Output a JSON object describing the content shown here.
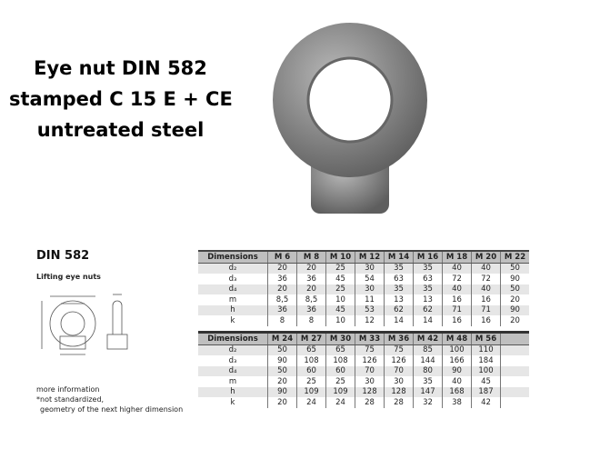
{
  "title": [
    "Eye nut DIN 582",
    "stamped C 15 E + CE",
    "untreated steel"
  ],
  "heading": "DIN 582",
  "subheading": "Lifting eye nuts",
  "notes": [
    "more information",
    "*not standardized,",
    "geometry of the next higher dimension"
  ],
  "table1": {
    "header": [
      "Dimensions",
      "M 6",
      "M 8",
      "M 10",
      "M 12",
      "M 14",
      "M 16",
      "M 18",
      "M 20",
      "M 22"
    ],
    "rows": [
      [
        "d₂",
        "20",
        "20",
        "25",
        "30",
        "35",
        "35",
        "40",
        "40",
        "50"
      ],
      [
        "d₃",
        "36",
        "36",
        "45",
        "54",
        "63",
        "63",
        "72",
        "72",
        "90"
      ],
      [
        "d₄",
        "20",
        "20",
        "25",
        "30",
        "35",
        "35",
        "40",
        "40",
        "50"
      ],
      [
        "m",
        "8,5",
        "8,5",
        "10",
        "11",
        "13",
        "13",
        "16",
        "16",
        "20"
      ],
      [
        "h",
        "36",
        "36",
        "45",
        "53",
        "62",
        "62",
        "71",
        "71",
        "90"
      ],
      [
        "k",
        "8",
        "8",
        "10",
        "12",
        "14",
        "14",
        "16",
        "16",
        "20"
      ]
    ]
  },
  "table2": {
    "header": [
      "Dimensions",
      "M 24",
      "M 27",
      "M 30",
      "M 33",
      "M 36",
      "M 42",
      "M 48",
      "M 56",
      ""
    ],
    "rows": [
      [
        "d₂",
        "50",
        "65",
        "65",
        "75",
        "75",
        "85",
        "100",
        "110",
        ""
      ],
      [
        "d₃",
        "90",
        "108",
        "108",
        "126",
        "126",
        "144",
        "166",
        "184",
        ""
      ],
      [
        "d₄",
        "50",
        "60",
        "60",
        "70",
        "70",
        "80",
        "90",
        "100",
        ""
      ],
      [
        "m",
        "20",
        "25",
        "25",
        "30",
        "30",
        "35",
        "40",
        "45",
        ""
      ],
      [
        "h",
        "90",
        "109",
        "109",
        "128",
        "128",
        "147",
        "168",
        "187",
        ""
      ],
      [
        "k",
        "20",
        "24",
        "24",
        "28",
        "28",
        "32",
        "38",
        "42",
        ""
      ]
    ]
  }
}
